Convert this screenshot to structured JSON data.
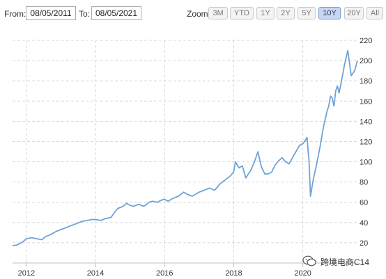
{
  "toolbar": {
    "from_label": "From:",
    "from_value": "08/05/2011",
    "to_label": "To:",
    "to_value": "08/05/2021",
    "zoom_label": "Zoom:",
    "zoom_buttons": [
      "3M",
      "YTD",
      "1Y",
      "2Y",
      "5Y",
      "10Y",
      "20Y",
      "All"
    ],
    "zoom_active": "10Y"
  },
  "watermark": {
    "text": "跨境电商C14"
  },
  "colors": {
    "line": "#6fa3d6",
    "grid": "#d8d8d8",
    "active_zoom": "#c6d7f4"
  },
  "chart_data": {
    "type": "line",
    "title": "",
    "xlabel": "",
    "ylabel": "",
    "xlim": [
      2011.6,
      2021.6
    ],
    "ylim": [
      0,
      220
    ],
    "y_ticks": [
      20,
      40,
      60,
      80,
      100,
      120,
      140,
      160,
      180,
      200,
      220
    ],
    "x_ticks": [
      2012,
      2014,
      2016,
      2018,
      2020
    ],
    "x_tick_labels": [
      "2012",
      "2014",
      "2016",
      "2018",
      "2020"
    ],
    "grid": true,
    "series": [
      {
        "name": "",
        "x": [
          2011.6,
          2011.75,
          2011.9,
          2012.0,
          2012.15,
          2012.3,
          2012.45,
          2012.55,
          2012.7,
          2012.85,
          2013.0,
          2013.15,
          2013.3,
          2013.45,
          2013.6,
          2013.75,
          2013.9,
          2014.0,
          2014.15,
          2014.3,
          2014.45,
          2014.55,
          2014.65,
          2014.8,
          2014.9,
          2015.0,
          2015.1,
          2015.25,
          2015.4,
          2015.55,
          2015.65,
          2015.8,
          2015.9,
          2016.0,
          2016.1,
          2016.25,
          2016.4,
          2016.55,
          2016.65,
          2016.8,
          2016.9,
          2017.0,
          2017.15,
          2017.3,
          2017.45,
          2017.6,
          2017.75,
          2017.9,
          2018.0,
          2018.05,
          2018.15,
          2018.25,
          2018.35,
          2018.5,
          2018.6,
          2018.7,
          2018.8,
          2018.9,
          2019.0,
          2019.1,
          2019.2,
          2019.3,
          2019.4,
          2019.5,
          2019.6,
          2019.7,
          2019.8,
          2019.9,
          2020.0,
          2020.05,
          2020.12,
          2020.18,
          2020.22,
          2020.3,
          2020.4,
          2020.5,
          2020.6,
          2020.7,
          2020.75,
          2020.8,
          2020.85,
          2020.9,
          2020.95,
          2021.0,
          2021.05,
          2021.12,
          2021.2,
          2021.3,
          2021.4,
          2021.5,
          2021.58
        ],
        "y": [
          17,
          18,
          21,
          24,
          25,
          24,
          23,
          26,
          28,
          31,
          33,
          35,
          37,
          39,
          41,
          42,
          43,
          43,
          42,
          44,
          45,
          50,
          54,
          56,
          59,
          57,
          56,
          58,
          56,
          60,
          61,
          60,
          62,
          63,
          61,
          64,
          66,
          70,
          68,
          66,
          68,
          70,
          72,
          74,
          72,
          78,
          82,
          86,
          90,
          100,
          94,
          96,
          84,
          92,
          100,
          110,
          95,
          88,
          88,
          90,
          97,
          101,
          104,
          100,
          98,
          104,
          110,
          116,
          118,
          120,
          124,
          100,
          66,
          82,
          98,
          115,
          135,
          150,
          155,
          165,
          163,
          155,
          170,
          175,
          168,
          180,
          195,
          210,
          185,
          190,
          200
        ]
      }
    ]
  }
}
